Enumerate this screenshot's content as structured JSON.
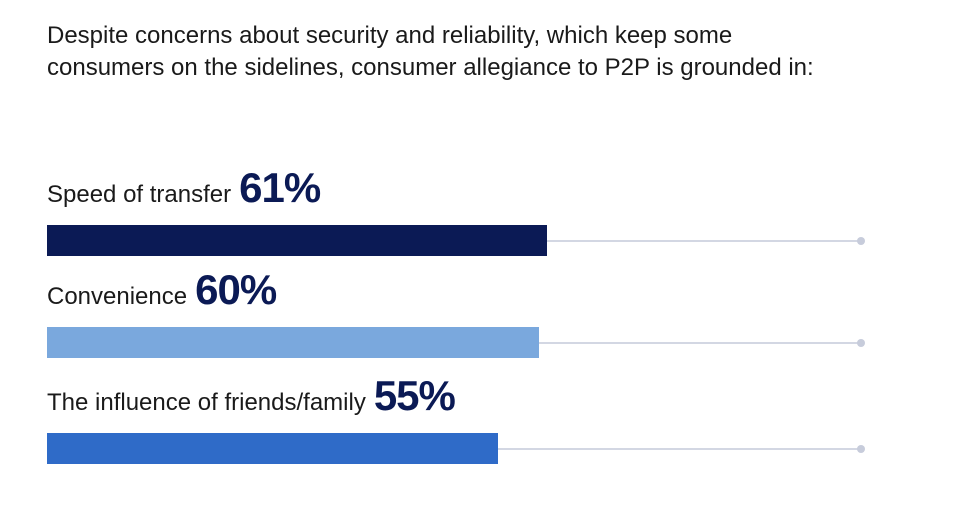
{
  "intro_text": "Despite concerns about security and reliability, which keep some consumers on the sidelines, consumer allegiance to P2P is grounded in:",
  "chart_data": {
    "type": "bar",
    "orientation": "horizontal",
    "categories": [
      "Speed of transfer",
      "Convenience",
      "The influence of friends/family"
    ],
    "values": [
      61,
      60,
      55
    ],
    "value_labels": [
      "61%",
      "60%",
      "55%"
    ],
    "unit": "%",
    "xlim": [
      0,
      100
    ],
    "colors": [
      "#0b1a55",
      "#7aa8dd",
      "#2f6bc8"
    ],
    "track_color": "#d3d7e3",
    "grid": false
  }
}
